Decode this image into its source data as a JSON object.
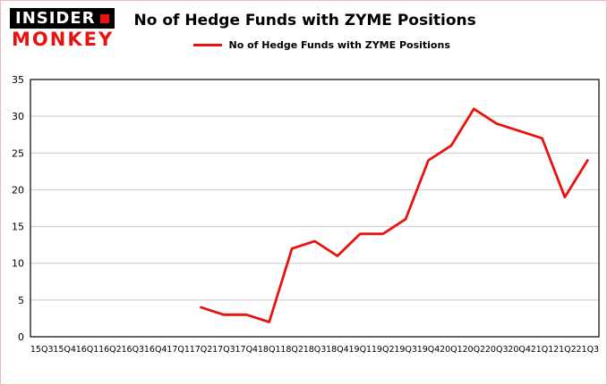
{
  "header": {
    "logo_line1": "INSIDER",
    "logo_line2": "MONKEY",
    "title": "No of Hedge Funds with ZYME Positions",
    "legend_label": "No of Hedge Funds with ZYME Positions"
  },
  "colors": {
    "line": "#e8120e",
    "grid": "#c9c9c9",
    "axis": "#000000",
    "logo_red": "#e8120e"
  },
  "chart_data": {
    "type": "line",
    "title": "No of Hedge Funds with ZYME Positions",
    "categories": [
      "15Q3",
      "15Q4",
      "16Q1",
      "16Q2",
      "16Q3",
      "16Q4",
      "17Q1",
      "17Q2",
      "17Q3",
      "17Q4",
      "18Q1",
      "18Q2",
      "18Q3",
      "18Q4",
      "19Q1",
      "19Q2",
      "19Q3",
      "19Q4",
      "20Q1",
      "20Q2",
      "20Q3",
      "20Q4",
      "21Q1",
      "21Q2",
      "21Q3"
    ],
    "series": [
      {
        "name": "No of Hedge Funds with ZYME Positions",
        "values": [
          null,
          null,
          null,
          null,
          null,
          null,
          null,
          4,
          3,
          3,
          2,
          12,
          13,
          11,
          14,
          14,
          16,
          24,
          26,
          31,
          29,
          28,
          27,
          19,
          24
        ]
      }
    ],
    "xlabel": "",
    "ylabel": "",
    "ylim": [
      0,
      35
    ],
    "ytick_step": 5,
    "grid": true,
    "legend_position": "top-left"
  }
}
